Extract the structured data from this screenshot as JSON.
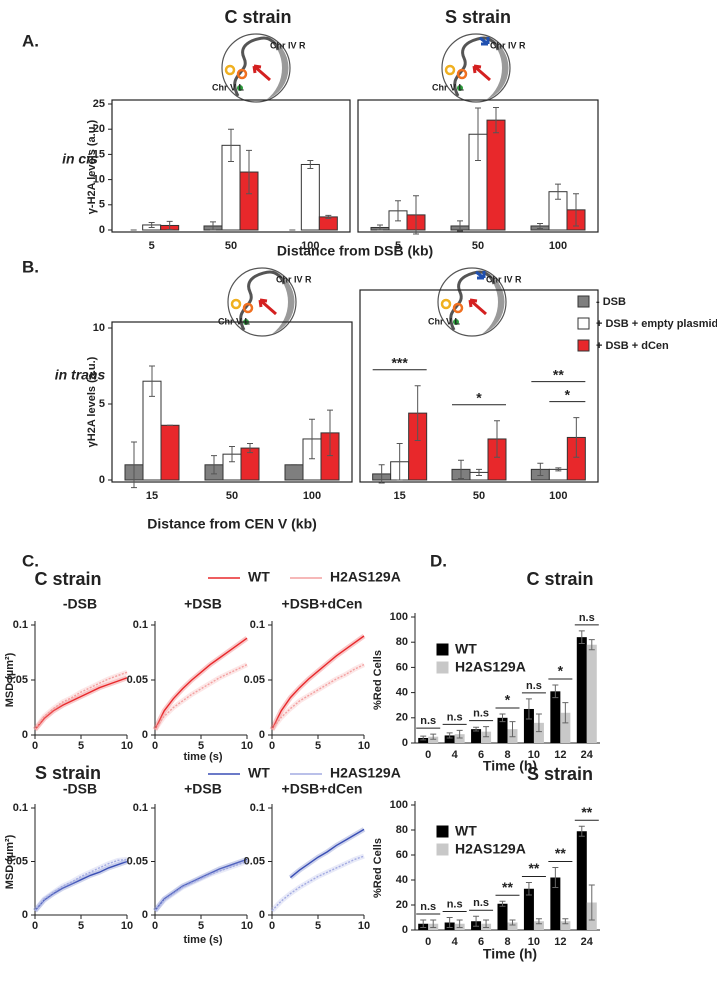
{
  "figure": {
    "panel_labels": [
      "A.",
      "B.",
      "C.",
      "D."
    ],
    "in_cis": "in cis",
    "in_trans": "in trans",
    "diagram_labels": [
      "Chr IV R",
      "Chr V L"
    ]
  },
  "chart_data": [
    {
      "type": "bar",
      "title": "C strain",
      "ylabel": "γ-H2A levels (a.u.)",
      "xlabel": "Distance from DSB (kb)",
      "categories": [
        "5",
        "50",
        "100"
      ],
      "ylim": [
        0,
        25
      ],
      "yticks": [
        0,
        5,
        10,
        15,
        20,
        25
      ],
      "series": [
        {
          "color": "#7f7f7f",
          "values": [
            0,
            0.8,
            0
          ],
          "errors": [
            0,
            0.8,
            0
          ]
        },
        {
          "color": "#ffffff",
          "values": [
            1.0,
            16.8,
            13.0
          ],
          "errors": [
            0.5,
            3.2,
            0.8
          ]
        },
        {
          "color": "#e8282b",
          "values": [
            0.9,
            11.5,
            2.6
          ],
          "errors": [
            0.8,
            4.3,
            0.3
          ]
        }
      ]
    },
    {
      "type": "bar",
      "title": "S strain",
      "categories": [
        "5",
        "50",
        "100"
      ],
      "ylim": [
        0,
        25
      ],
      "series": [
        {
          "color": "#7f7f7f",
          "values": [
            0.5,
            0.8,
            0.8
          ],
          "errors": [
            0.5,
            1.0,
            0.5
          ]
        },
        {
          "color": "#ffffff",
          "values": [
            3.8,
            19.0,
            7.6
          ],
          "errors": [
            2.0,
            5.2,
            1.5
          ]
        },
        {
          "color": "#e8282b",
          "values": [
            3.0,
            21.8,
            4.0
          ],
          "errors": [
            3.8,
            2.5,
            3.2
          ]
        }
      ]
    },
    {
      "type": "bar",
      "ylabel": "γH2A levels (a.u.)",
      "xlabel": "Distance from CEN V (kb)",
      "categories": [
        "15",
        "50",
        "100"
      ],
      "ylim": [
        0,
        10
      ],
      "yticks": [
        0,
        5,
        10
      ],
      "series": [
        {
          "name": "- DSB",
          "color": "#7f7f7f",
          "values": [
            1.0,
            1.0,
            1.0
          ],
          "errors": [
            1.5,
            0.6,
            0
          ]
        },
        {
          "name": "+ DSB + empty plasmid",
          "color": "#ffffff",
          "values": [
            6.5,
            1.7,
            2.7
          ],
          "errors": [
            1.0,
            0.5,
            1.3
          ]
        },
        {
          "name": "+ DSB + dCen",
          "color": "#e8282b",
          "values": [
            3.6,
            2.1,
            3.1
          ],
          "errors": [
            0,
            0.3,
            1.5
          ]
        }
      ]
    },
    {
      "type": "bar",
      "categories": [
        "15",
        "50",
        "100"
      ],
      "ylim": [
        0,
        10
      ],
      "series": [
        {
          "color": "#7f7f7f",
          "values": [
            0.4,
            0.7,
            0.7
          ],
          "errors": [
            0.6,
            0.6,
            0.4
          ]
        },
        {
          "color": "#ffffff",
          "values": [
            1.2,
            0.5,
            0.7
          ],
          "errors": [
            1.2,
            0.2,
            0.1
          ]
        },
        {
          "color": "#e8282b",
          "values": [
            4.4,
            2.7,
            2.8
          ],
          "errors": [
            1.8,
            1.2,
            1.3
          ]
        }
      ],
      "significance": [
        [
          "***"
        ],
        [
          "*"
        ],
        [
          "*",
          "**"
        ]
      ]
    },
    {
      "type": "line",
      "group_title": "C strain",
      "title": "-DSB",
      "ylabel": "MSD (µm²)",
      "x": [
        0,
        1,
        2,
        3,
        4,
        5,
        6,
        7,
        8,
        9,
        10
      ],
      "xlim": [
        0,
        10
      ],
      "xticks": [
        0,
        5,
        10
      ],
      "ylim": [
        0,
        0.1
      ],
      "yticks": [
        0,
        0.05,
        0.1
      ],
      "series": [
        {
          "name": "WT",
          "color": "#e8282b",
          "values": [
            0.005,
            0.015,
            0.022,
            0.027,
            0.031,
            0.035,
            0.039,
            0.043,
            0.046,
            0.049,
            0.052
          ]
        },
        {
          "name": "H2AS129A",
          "color": "#f3a0a0",
          "style": "dotted",
          "values": [
            0.005,
            0.017,
            0.024,
            0.03,
            0.034,
            0.039,
            0.043,
            0.047,
            0.051,
            0.054,
            0.057
          ]
        }
      ]
    },
    {
      "type": "line",
      "title": "+DSB",
      "xlabel": "time (s)",
      "x": [
        0,
        1,
        2,
        3,
        4,
        5,
        6,
        7,
        8,
        9,
        10
      ],
      "xlim": [
        0,
        10
      ],
      "xticks": [
        0,
        5,
        10
      ],
      "ylim": [
        0,
        0.1
      ],
      "yticks": [
        0,
        0.05,
        0.1
      ],
      "series": [
        {
          "color": "#e8282b",
          "values": [
            0.005,
            0.022,
            0.033,
            0.042,
            0.05,
            0.057,
            0.064,
            0.07,
            0.076,
            0.082,
            0.088
          ]
        },
        {
          "color": "#f3a0a0",
          "style": "dotted",
          "values": [
            0.005,
            0.017,
            0.025,
            0.031,
            0.037,
            0.042,
            0.047,
            0.052,
            0.056,
            0.06,
            0.064
          ]
        }
      ]
    },
    {
      "type": "line",
      "title": "+DSB+dCen",
      "x": [
        0,
        1,
        2,
        3,
        4,
        5,
        6,
        7,
        8,
        9,
        10
      ],
      "xlim": [
        0,
        10
      ],
      "xticks": [
        0,
        5,
        10
      ],
      "ylim": [
        0,
        0.1
      ],
      "yticks": [
        0,
        0.05,
        0.1
      ],
      "series": [
        {
          "color": "#e8282b",
          "values": [
            0.005,
            0.022,
            0.034,
            0.043,
            0.051,
            0.058,
            0.065,
            0.072,
            0.078,
            0.084,
            0.09
          ]
        },
        {
          "color": "#f3a0a0",
          "style": "dotted",
          "values": [
            0.005,
            0.016,
            0.024,
            0.031,
            0.036,
            0.041,
            0.046,
            0.051,
            0.055,
            0.06,
            0.064
          ]
        }
      ]
    },
    {
      "type": "line",
      "group_title": "S strain",
      "title": "-DSB",
      "ylabel": "MSD (µm²)",
      "x": [
        0,
        1,
        2,
        3,
        4,
        5,
        6,
        7,
        8,
        9,
        10
      ],
      "xlim": [
        0,
        10
      ],
      "xticks": [
        0,
        5,
        10
      ],
      "ylim": [
        0,
        0.1
      ],
      "yticks": [
        0,
        0.05,
        0.1
      ],
      "series": [
        {
          "name": "WT",
          "color": "#3a4fb5",
          "values": [
            0.004,
            0.014,
            0.02,
            0.025,
            0.029,
            0.033,
            0.037,
            0.04,
            0.044,
            0.047,
            0.05
          ]
        },
        {
          "name": "H2AS129A",
          "color": "#a3abe2",
          "style": "dotted",
          "values": [
            0.004,
            0.015,
            0.021,
            0.027,
            0.031,
            0.036,
            0.04,
            0.044,
            0.048,
            0.051,
            0.052
          ]
        }
      ]
    },
    {
      "type": "line",
      "title": "+DSB",
      "xlabel": "time (s)",
      "x": [
        0,
        1,
        2,
        3,
        4,
        5,
        6,
        7,
        8,
        9,
        10
      ],
      "xlim": [
        0,
        10
      ],
      "xticks": [
        0,
        5,
        10
      ],
      "ylim": [
        0,
        0.1
      ],
      "yticks": [
        0,
        0.05,
        0.1
      ],
      "series": [
        {
          "color": "#3a4fb5",
          "values": [
            0.004,
            0.015,
            0.021,
            0.027,
            0.031,
            0.035,
            0.039,
            0.043,
            0.046,
            0.049,
            0.052
          ]
        },
        {
          "color": "#a3abe2",
          "style": "dotted",
          "values": [
            0.004,
            0.014,
            0.02,
            0.026,
            0.03,
            0.034,
            0.038,
            0.041,
            0.044,
            0.047,
            0.05
          ]
        }
      ]
    },
    {
      "type": "line",
      "title": "+DSB+dCen",
      "x": [
        0,
        1,
        2,
        3,
        4,
        5,
        6,
        7,
        8,
        9,
        10
      ],
      "xlim": [
        0,
        10
      ],
      "xticks": [
        0,
        5,
        10
      ],
      "ylim": [
        0,
        0.1
      ],
      "yticks": [
        0,
        0.05,
        0.1
      ],
      "series": [
        {
          "color": "#3a4fb5",
          "values": [
            null,
            null,
            0.035,
            0.042,
            0.048,
            0.054,
            0.059,
            0.065,
            0.07,
            0.075,
            0.08
          ]
        },
        {
          "color": "#a3abe2",
          "style": "dotted",
          "values": [
            0.004,
            0.013,
            0.02,
            0.026,
            0.031,
            0.036,
            0.04,
            0.044,
            0.048,
            0.052,
            0.055
          ]
        }
      ]
    },
    {
      "type": "bar",
      "title": "C strain",
      "ylabel": "%Red Cells",
      "xlabel": "Time (h)",
      "categories": [
        "0",
        "4",
        "6",
        "8",
        "10",
        "12",
        "24"
      ],
      "ylim": [
        0,
        100
      ],
      "yticks": [
        0,
        20,
        40,
        60,
        80,
        100
      ],
      "series": [
        {
          "name": "WT",
          "color": "#000000",
          "values": [
            4,
            6,
            11,
            20,
            27,
            41,
            84
          ],
          "errors": [
            1.5,
            2,
            1.5,
            3,
            8,
            5,
            5
          ]
        },
        {
          "name": "H2AS129A",
          "color": "#c8c8c8",
          "values": [
            5,
            7,
            9,
            11,
            16,
            24,
            78
          ],
          "errors": [
            2,
            3,
            4,
            6,
            7,
            8,
            4
          ]
        }
      ],
      "significance": [
        "n.s",
        "n.s",
        "n.s",
        "*",
        "n.s",
        "*",
        "n.s"
      ]
    },
    {
      "type": "bar",
      "title": "S strain",
      "ylabel": "%Red Cells",
      "xlabel": "Time (h)",
      "categories": [
        "0",
        "4",
        "6",
        "8",
        "10",
        "12",
        "24"
      ],
      "ylim": [
        0,
        100
      ],
      "yticks": [
        0,
        20,
        40,
        60,
        80,
        100
      ],
      "series": [
        {
          "name": "WT",
          "color": "#000000",
          "values": [
            5,
            6,
            7,
            21,
            33,
            42,
            79
          ],
          "errors": [
            3,
            4,
            4,
            2,
            5,
            8,
            4
          ]
        },
        {
          "name": "H2AS129A",
          "color": "#c8c8c8",
          "values": [
            5,
            5,
            5,
            6,
            7,
            7,
            22
          ],
          "errors": [
            3,
            3,
            3,
            2,
            2,
            2,
            14
          ]
        }
      ],
      "significance": [
        "n.s",
        "n.s",
        "n.s",
        "**",
        "**",
        "**",
        "**"
      ]
    }
  ]
}
